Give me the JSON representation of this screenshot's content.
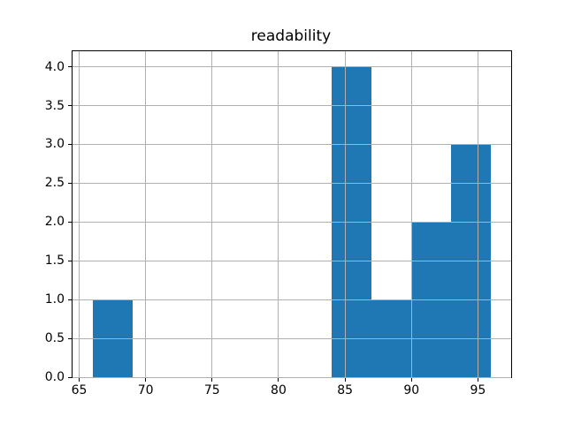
{
  "chart_data": {
    "type": "bar",
    "subtype": "histogram",
    "title": "readability",
    "xlabel": "",
    "ylabel": "",
    "bin_edges": [
      66,
      69,
      72,
      75,
      78,
      81,
      84,
      87,
      90,
      93,
      96
    ],
    "counts": [
      1,
      0,
      0,
      0,
      0,
      0,
      4,
      1,
      2,
      3
    ],
    "xlim": [
      64.5,
      97.5
    ],
    "ylim": [
      0,
      4.2
    ],
    "xtick_values": [
      65,
      70,
      75,
      80,
      85,
      90,
      95
    ],
    "xtick_labels": [
      "65",
      "70",
      "75",
      "80",
      "85",
      "90",
      "95"
    ],
    "ytick_values": [
      0.0,
      0.5,
      1.0,
      1.5,
      2.0,
      2.5,
      3.0,
      3.5,
      4.0
    ],
    "ytick_labels": [
      "0.0",
      "0.5",
      "1.0",
      "1.5",
      "2.0",
      "2.5",
      "3.0",
      "3.5",
      "4.0"
    ],
    "grid": true,
    "grid_above_bars": true,
    "legend": "none"
  },
  "colors": {
    "bar": "#1f77b4",
    "grid": "#b0b0b0",
    "spine": "#000000",
    "background": "#ffffff",
    "text": "#000000"
  }
}
